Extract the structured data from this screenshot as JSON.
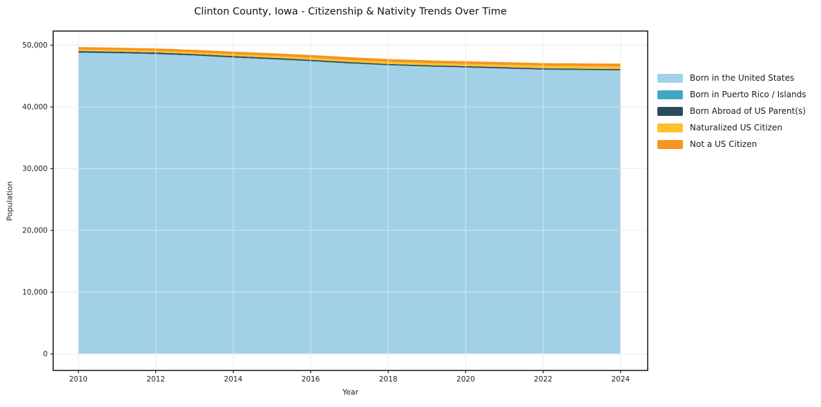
{
  "title": "Clinton County, Iowa - Citizenship & Nativity Trends Over Time",
  "chart_data": {
    "type": "area",
    "stacked": true,
    "title": "Clinton County, Iowa - Citizenship & Nativity Trends Over Time",
    "xlabel": "Year",
    "ylabel": "Population",
    "grid": true,
    "legend_position": "right-outside",
    "x": [
      2010,
      2011,
      2012,
      2013,
      2014,
      2015,
      2016,
      2017,
      2018,
      2019,
      2020,
      2021,
      2022,
      2023,
      2024
    ],
    "series": [
      {
        "name": "Born in the United States",
        "color": "#a2d1e7",
        "values": [
          48750,
          48660,
          48530,
          48290,
          47960,
          47690,
          47370,
          47015,
          46720,
          46525,
          46355,
          46175,
          45995,
          45940,
          45885
        ]
      },
      {
        "name": "Born in Puerto Rico / Islands",
        "color": "#3fa9c2",
        "values": [
          70,
          65,
          60,
          55,
          60,
          65,
          70,
          60,
          55,
          50,
          60,
          70,
          65,
          60,
          55
        ]
      },
      {
        "name": "Born Abroad of US Parent(s)",
        "color": "#2a4a5c",
        "values": [
          230,
          225,
          220,
          215,
          210,
          205,
          200,
          195,
          190,
          185,
          190,
          195,
          200,
          195,
          190
        ]
      },
      {
        "name": "Naturalized US Citizen",
        "color": "#fbc22d",
        "values": [
          250,
          260,
          270,
          280,
          300,
          310,
          320,
          330,
          340,
          350,
          360,
          380,
          400,
          410,
          420
        ]
      },
      {
        "name": "Not a US Citizen",
        "color": "#f6941e",
        "values": [
          400,
          390,
          400,
          410,
          420,
          430,
          440,
          450,
          445,
          440,
          435,
          430,
          440,
          445,
          450
        ]
      }
    ],
    "xlim": [
      2009.35,
      2024.7
    ],
    "ylim": [
      -2680,
      52290
    ],
    "xticks": [
      2010,
      2012,
      2014,
      2016,
      2018,
      2020,
      2022,
      2024
    ],
    "yticks": [
      0,
      10000,
      20000,
      30000,
      40000,
      50000
    ],
    "ytick_labels": [
      "0",
      "10,000",
      "20,000",
      "30,000",
      "40,000",
      "50,000"
    ],
    "colors": {
      "grid": "#e7e7e7",
      "spine": "#1f1f1f",
      "tick_text": "#202020",
      "background": "#ffffff"
    }
  }
}
